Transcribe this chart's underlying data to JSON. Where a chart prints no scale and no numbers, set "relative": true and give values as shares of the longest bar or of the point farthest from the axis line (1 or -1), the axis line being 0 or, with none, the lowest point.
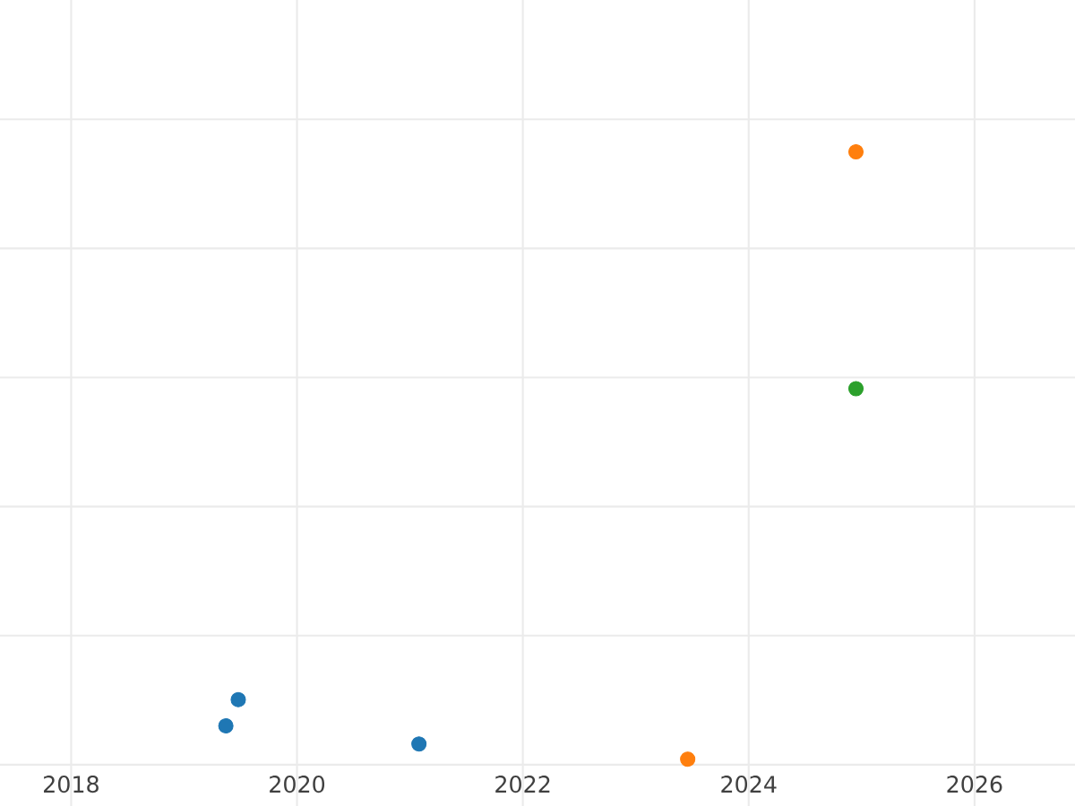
{
  "chart_data": {
    "type": "scatter",
    "relative": true,
    "grid": true,
    "tick_labels": "x",
    "xlim": [
      2017.37,
      2026.89
    ],
    "xticks": [
      2018,
      2020,
      2022,
      2024,
      2026
    ],
    "series": [
      {
        "color": "#1f77b4",
        "x": [
          2019.37,
          2019.48,
          2021.08
        ],
        "values": [
          0.055,
          0.098,
          0.025
        ]
      },
      {
        "color": "#ff7f0e",
        "x": [
          2023.46,
          2024.95
        ],
        "values": [
          0,
          1
        ]
      },
      {
        "color": "#2ca02c",
        "x": [
          2024.95
        ],
        "values": [
          0.61
        ]
      }
    ]
  }
}
